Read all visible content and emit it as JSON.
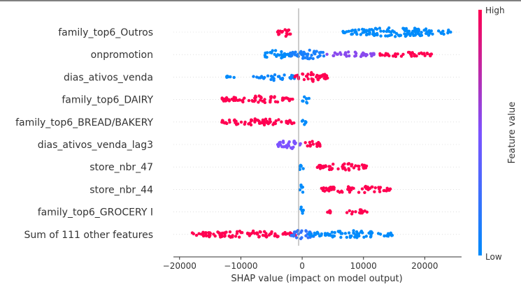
{
  "chart_data": {
    "type": "scatter",
    "subtype": "shap-beeswarm",
    "title": "",
    "xlabel": "SHAP value (impact on model output)",
    "ylabel": "",
    "xlim": [
      -21000,
      26000
    ],
    "xticks": [
      -20000,
      -10000,
      0,
      10000,
      20000
    ],
    "xtick_labels": [
      "−20000",
      "−10000",
      "0",
      "10000",
      "20000"
    ],
    "grid": false,
    "colorbar": {
      "title": "Feature value",
      "high_label": "High",
      "low_label": "Low",
      "low_color": "#008bfb",
      "high_color": "#ff0051"
    },
    "features": [
      {
        "name": "family_top6_Outros",
        "groups": [
          {
            "x_min": -4300,
            "x_max": -1700,
            "value": 1.0,
            "density": 1.0
          },
          {
            "x_min": 6500,
            "x_max": 24300,
            "value": 0.0,
            "density": 1.0
          }
        ]
      },
      {
        "name": "onpromotion",
        "groups": [
          {
            "x_min": -6200,
            "x_max": -2000,
            "value": 0.0,
            "density": 1.0
          },
          {
            "x_min": -2000,
            "x_max": 4000,
            "value": 0.1,
            "density": 1.0
          },
          {
            "x_min": 4000,
            "x_max": 12000,
            "value": 0.55,
            "density": 0.6
          },
          {
            "x_min": 12000,
            "x_max": 22000,
            "value": 1.0,
            "density": 0.5
          }
        ]
      },
      {
        "name": "dias_ativos_venda",
        "groups": [
          {
            "x_min": -12800,
            "x_max": -11000,
            "value": 0.0,
            "density": 0.3
          },
          {
            "x_min": -8000,
            "x_max": -1200,
            "value": 0.05,
            "density": 0.7
          },
          {
            "x_min": -1200,
            "x_max": 4300,
            "value": 1.0,
            "density": 1.0
          }
        ]
      },
      {
        "name": "family_top6_DAIRY",
        "groups": [
          {
            "x_min": -13200,
            "x_max": -1300,
            "value": 1.0,
            "density": 0.8
          },
          {
            "x_min": 0,
            "x_max": 1200,
            "value": 0.0,
            "density": 1.0
          }
        ]
      },
      {
        "name": "family_top6_BREAD/BAKERY",
        "groups": [
          {
            "x_min": -13200,
            "x_max": -1300,
            "value": 1.0,
            "density": 0.8
          },
          {
            "x_min": -100,
            "x_max": 700,
            "value": 0.0,
            "density": 1.0
          }
        ]
      },
      {
        "name": "dias_ativos_venda_lag3",
        "groups": [
          {
            "x_min": -4000,
            "x_max": 0,
            "value": 0.5,
            "density": 1.0
          },
          {
            "x_min": 0,
            "x_max": 3000,
            "value": 1.0,
            "density": 0.8
          }
        ]
      },
      {
        "name": "store_nbr_47",
        "groups": [
          {
            "x_min": -500,
            "x_max": 200,
            "value": 0.0,
            "density": 1.0
          },
          {
            "x_min": 2300,
            "x_max": 10800,
            "value": 1.0,
            "density": 0.8
          }
        ]
      },
      {
        "name": "store_nbr_44",
        "groups": [
          {
            "x_min": -500,
            "x_max": 200,
            "value": 0.0,
            "density": 1.0
          },
          {
            "x_min": 3000,
            "x_max": 14500,
            "value": 1.0,
            "density": 0.8
          }
        ]
      },
      {
        "name": "family_top6_GROCERY I",
        "groups": [
          {
            "x_min": -500,
            "x_max": 200,
            "value": 0.0,
            "density": 1.0
          },
          {
            "x_min": 3500,
            "x_max": 4800,
            "value": 1.0,
            "density": 0.4
          },
          {
            "x_min": 6800,
            "x_max": 10600,
            "value": 1.0,
            "density": 0.6
          }
        ]
      },
      {
        "name": "Sum of 111 other features",
        "groups": [
          {
            "x_min": -18000,
            "x_max": -1000,
            "value": 1.0,
            "density": 0.8
          },
          {
            "x_min": -2000,
            "x_max": 2000,
            "value": 0.2,
            "density": 1.0
          },
          {
            "x_min": 1000,
            "x_max": 15000,
            "value": 0.0,
            "density": 0.8
          }
        ]
      }
    ]
  }
}
